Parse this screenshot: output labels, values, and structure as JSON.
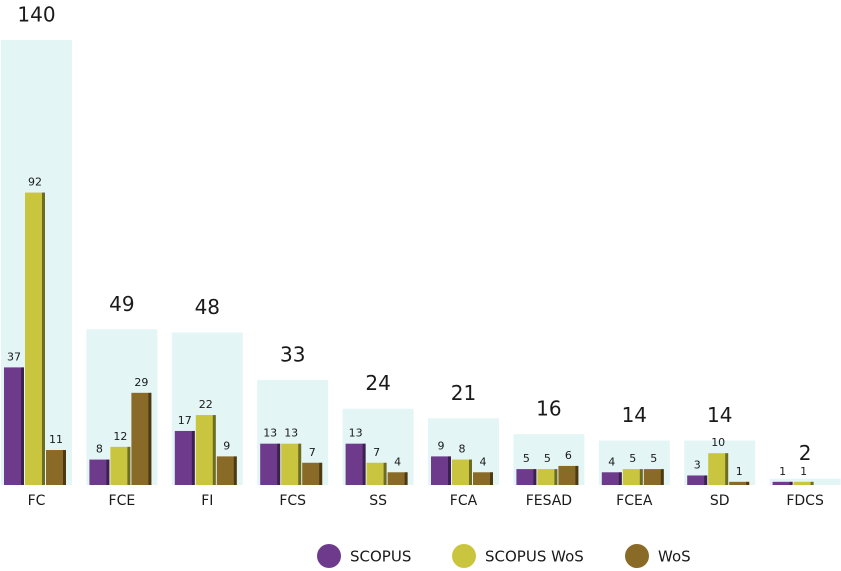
{
  "chart_data": {
    "type": "bar",
    "categories": [
      "FC",
      "FCE",
      "FI",
      "FCS",
      "SS",
      "FCA",
      "FESAD",
      "FCEA",
      "SD",
      "FDCS"
    ],
    "totals": [
      140,
      49,
      48,
      33,
      24,
      21,
      16,
      14,
      14,
      2
    ],
    "series": [
      {
        "name": "SCOPUS",
        "color": "#6e3b8c",
        "values": [
          37,
          8,
          17,
          13,
          13,
          9,
          5,
          4,
          3,
          1
        ]
      },
      {
        "name": "SCOPUS WoS",
        "color": "#c9c53f",
        "values": [
          92,
          12,
          22,
          13,
          7,
          8,
          5,
          5,
          10,
          1
        ]
      },
      {
        "name": "WoS",
        "color": "#8a6a27",
        "values": [
          11,
          29,
          9,
          7,
          4,
          4,
          6,
          5,
          1,
          null
        ]
      }
    ],
    "total_color": "#e4f5f5"
  }
}
